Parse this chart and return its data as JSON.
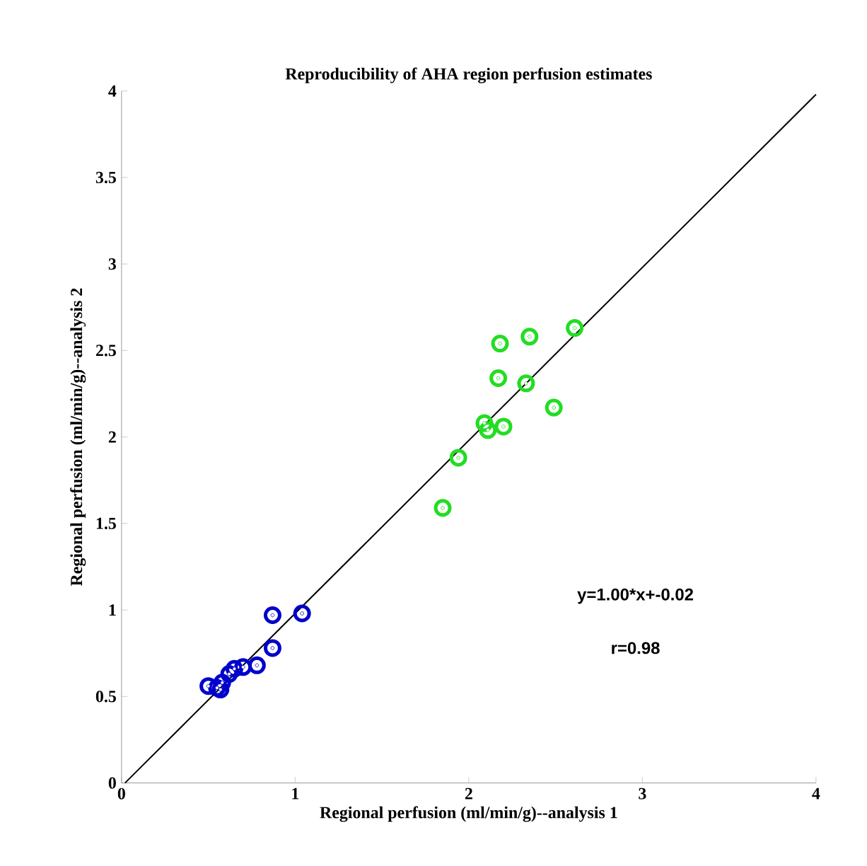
{
  "chart_data": {
    "type": "scatter",
    "title": "Reproducibility of AHA region perfusion estimates",
    "xlabel": "Regional perfusion (ml/min/g)--analysis 1",
    "ylabel": "Regional perfusion (ml/min/g)--analysis 2",
    "xlim": [
      0,
      4
    ],
    "ylim": [
      0,
      4
    ],
    "xticks": [
      0,
      1,
      2,
      3,
      4
    ],
    "yticks": [
      0,
      0.5,
      1,
      1.5,
      2,
      2.5,
      3,
      3.5,
      4
    ],
    "marker": "circle",
    "grid": false,
    "annotations": [
      "y=1.00*x+-0.02",
      "r=0.98"
    ],
    "series": [
      {
        "color": "#0000cc",
        "x": [
          0.5,
          0.55,
          0.57,
          0.58,
          0.62,
          0.65,
          0.7,
          0.78,
          0.87,
          0.87,
          1.04
        ],
        "values": [
          0.56,
          0.55,
          0.54,
          0.58,
          0.63,
          0.66,
          0.67,
          0.68,
          0.78,
          0.97,
          0.98
        ]
      },
      {
        "color": "#22dd22",
        "x": [
          2.18,
          2.35,
          2.61,
          2.17,
          2.33,
          2.49,
          2.09,
          2.11,
          2.2,
          1.94,
          1.85
        ],
        "values": [
          2.54,
          2.58,
          2.63,
          2.34,
          2.31,
          2.17,
          2.08,
          2.04,
          2.06,
          1.88,
          1.59
        ]
      },
      {
        "type": "line",
        "color": "#000000",
        "marker": "none",
        "x": [
          0.02,
          4
        ],
        "values": [
          0,
          3.98
        ]
      }
    ]
  }
}
